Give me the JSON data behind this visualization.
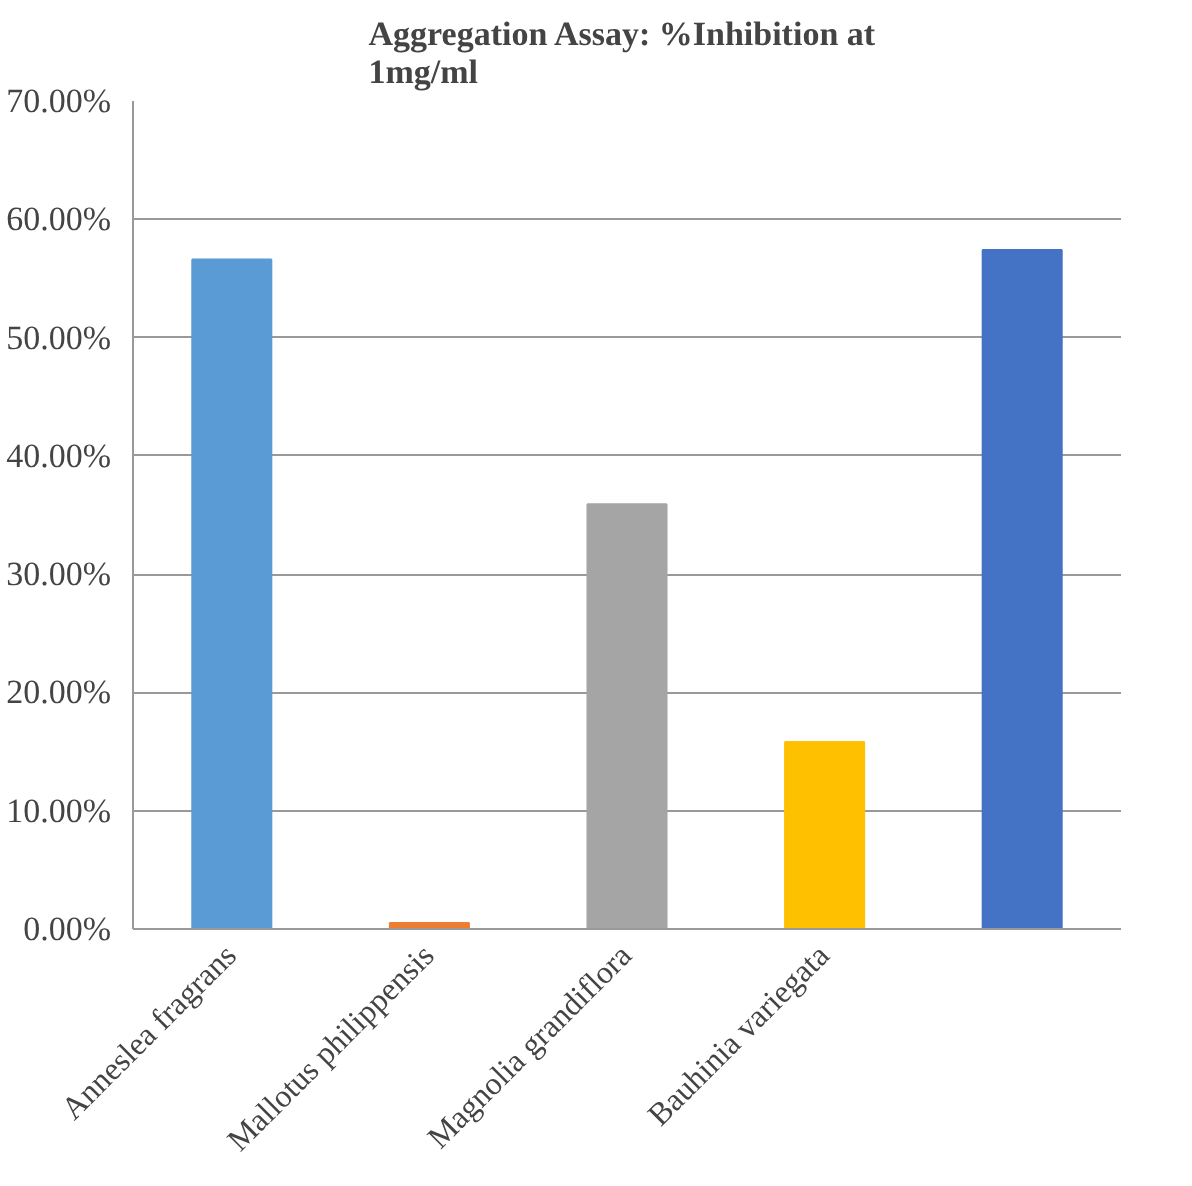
{
  "chart_data": {
    "type": "bar",
    "title": "Aggregation Assay:  %Inhibition at 1mg/ml",
    "categories": [
      "Anneslea fragrans",
      "Mallotus philippensis",
      "Magnolia grandiflora",
      "Bauhinia variegata",
      null
    ],
    "values": [
      56.6,
      0.5,
      35.9,
      15.8,
      57.4
    ],
    "colors": [
      "#5b9bd5",
      "#ed7d31",
      "#a5a5a5",
      "#ffc000",
      "#4472c4"
    ],
    "ylim": [
      0,
      70
    ],
    "yticks": [
      {
        "value": 0,
        "label": "0.00%"
      },
      {
        "value": 10,
        "label": "10.00%"
      },
      {
        "value": 20,
        "label": "20.00%"
      },
      {
        "value": 30,
        "label": "30.00%"
      },
      {
        "value": 40,
        "label": "40.00%"
      },
      {
        "value": 50,
        "label": "50.00%"
      },
      {
        "value": 60,
        "label": "60.00%"
      },
      {
        "value": 70,
        "label": "70.00%"
      }
    ],
    "grid": "y"
  }
}
